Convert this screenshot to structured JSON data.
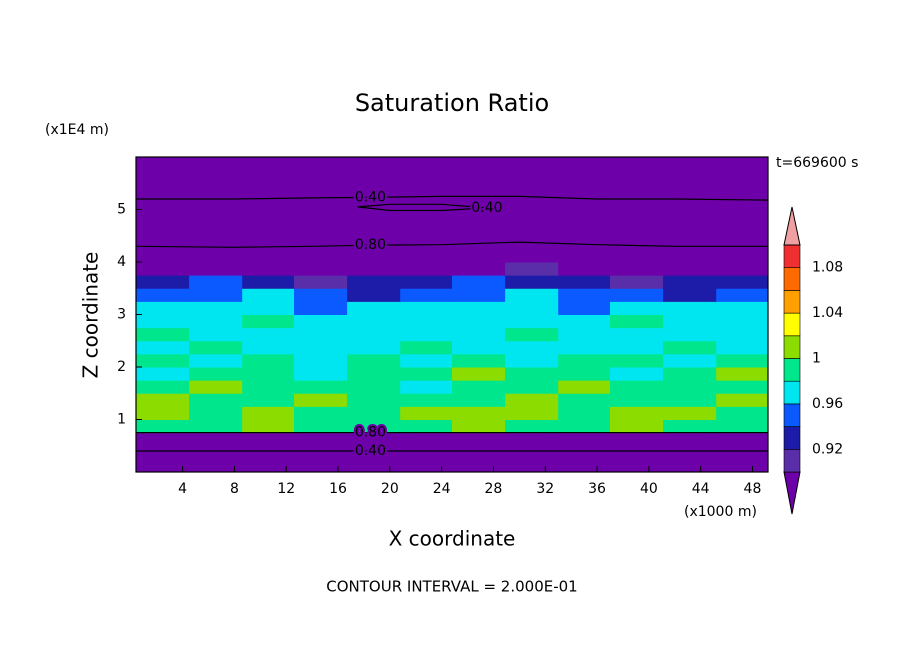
{
  "chart_data": {
    "type": "contourf",
    "title": "Saturation Ratio",
    "x_label": "X coordinate",
    "y_label": "Z coordinate",
    "x_unit": "(x1000 m)",
    "y_unit": "(x1E4 m)",
    "time_label": "t=669600 s",
    "footer": "CONTOUR INTERVAL = 2.000E-01",
    "xlim": [
      0.4,
      49.2
    ],
    "ylim": [
      0,
      6
    ],
    "xticks": [
      4,
      8,
      12,
      16,
      20,
      24,
      28,
      32,
      36,
      40,
      44,
      48
    ],
    "yticks": [
      1,
      2,
      3,
      4,
      5
    ],
    "levels": [
      0.9,
      0.92,
      0.94,
      0.96,
      0.98,
      1,
      1.02,
      1.04,
      1.06,
      1.08,
      1.1
    ],
    "level_ticks": [
      0.92,
      0.96,
      1,
      1.04,
      1.08
    ],
    "colors": [
      "#6e00aa",
      "#5a2ea8",
      "#1c1ca8",
      "#0a5aff",
      "#00e6f0",
      "#00e68c",
      "#8cdc00",
      "#ffff00",
      "#ffa000",
      "#ff6a00",
      "#f03030",
      "#f0a0a0"
    ],
    "field": {
      "x": [
        0.4,
        4.5,
        8.6,
        12.6,
        16.7,
        20.8,
        24.8,
        28.9,
        33,
        37,
        41.1,
        45.2,
        49.2
      ],
      "z": [
        0,
        0.25,
        0.5,
        0.75,
        1,
        1.25,
        1.5,
        1.75,
        2,
        2.25,
        2.5,
        2.75,
        3,
        3.25,
        3.5,
        3.75,
        4,
        4.25,
        4.5,
        4.75,
        5,
        5.25,
        5.5,
        5.75,
        6
      ],
      "values": [
        [
          0.3,
          0.3,
          0.3,
          0.3,
          0.3,
          0.3,
          0.3,
          0.3,
          0.3,
          0.3,
          0.3,
          0.3
        ],
        [
          0.45,
          0.45,
          0.45,
          0.45,
          0.45,
          0.45,
          0.45,
          0.45,
          0.45,
          0.45,
          0.45,
          0.45
        ],
        [
          0.7,
          0.7,
          0.7,
          0.7,
          0.7,
          0.7,
          0.7,
          0.7,
          0.7,
          0.7,
          0.7,
          0.7
        ],
        [
          0.99,
          0.99,
          1.01,
          0.99,
          0.99,
          0.99,
          1.01,
          0.99,
          0.99,
          1.01,
          0.99,
          0.99
        ],
        [
          1.01,
          0.99,
          1.01,
          0.99,
          0.99,
          1.01,
          1.01,
          1.01,
          0.99,
          1.01,
          1.01,
          0.99
        ],
        [
          1.01,
          0.99,
          0.99,
          1.01,
          0.99,
          0.99,
          0.99,
          1.01,
          0.99,
          0.99,
          0.99,
          1.01
        ],
        [
          0.99,
          1.01,
          0.99,
          0.99,
          0.99,
          0.97,
          0.99,
          0.99,
          1.01,
          0.99,
          0.99,
          0.99
        ],
        [
          0.97,
          0.99,
          0.99,
          0.97,
          0.99,
          0.99,
          1.01,
          0.99,
          0.99,
          0.97,
          0.99,
          1.01
        ],
        [
          0.99,
          0.97,
          0.99,
          0.97,
          0.99,
          0.97,
          0.99,
          0.97,
          0.99,
          0.99,
          0.97,
          0.99
        ],
        [
          0.97,
          0.99,
          0.97,
          0.97,
          0.97,
          0.99,
          0.97,
          0.97,
          0.97,
          0.97,
          0.99,
          0.97
        ],
        [
          0.99,
          0.97,
          0.97,
          0.97,
          0.97,
          0.97,
          0.97,
          0.99,
          0.97,
          0.97,
          0.97,
          0.97
        ],
        [
          0.97,
          0.97,
          0.99,
          0.97,
          0.97,
          0.97,
          0.97,
          0.97,
          0.97,
          0.99,
          0.97,
          0.97
        ],
        [
          0.97,
          0.97,
          0.97,
          0.95,
          0.97,
          0.97,
          0.97,
          0.97,
          0.95,
          0.97,
          0.97,
          0.97
        ],
        [
          0.95,
          0.95,
          0.97,
          0.95,
          0.93,
          0.95,
          0.95,
          0.97,
          0.95,
          0.95,
          0.93,
          0.95
        ],
        [
          0.93,
          0.95,
          0.93,
          0.91,
          0.93,
          0.93,
          0.95,
          0.93,
          0.93,
          0.91,
          0.93,
          0.93
        ],
        [
          0.87,
          0.87,
          0.87,
          0.87,
          0.87,
          0.87,
          0.87,
          0.91,
          0.87,
          0.87,
          0.87,
          0.87
        ],
        [
          0.82,
          0.82,
          0.82,
          0.82,
          0.82,
          0.82,
          0.82,
          0.82,
          0.82,
          0.82,
          0.82,
          0.82
        ],
        [
          0.75,
          0.75,
          0.75,
          0.75,
          0.75,
          0.75,
          0.75,
          0.75,
          0.75,
          0.75,
          0.75,
          0.75
        ],
        [
          0.62,
          0.62,
          0.62,
          0.62,
          0.62,
          0.62,
          0.62,
          0.62,
          0.62,
          0.62,
          0.62,
          0.62
        ],
        [
          0.5,
          0.5,
          0.5,
          0.5,
          0.5,
          0.5,
          0.5,
          0.5,
          0.5,
          0.5,
          0.5,
          0.5
        ],
        [
          0.42,
          0.42,
          0.42,
          0.42,
          0.42,
          0.42,
          0.42,
          0.42,
          0.42,
          0.42,
          0.42,
          0.42
        ],
        [
          0.35,
          0.35,
          0.35,
          0.35,
          0.35,
          0.35,
          0.35,
          0.35,
          0.35,
          0.35,
          0.35,
          0.35
        ],
        [
          0.3,
          0.3,
          0.3,
          0.3,
          0.3,
          0.3,
          0.3,
          0.3,
          0.3,
          0.3,
          0.3,
          0.3
        ],
        [
          0.28,
          0.28,
          0.28,
          0.28,
          0.28,
          0.28,
          0.28,
          0.28,
          0.28,
          0.28,
          0.28,
          0.28
        ]
      ]
    },
    "contours": [
      {
        "level": {
          "value": 0.4,
          "label": "0.40"
        },
        "x": [
          0.4,
          8,
          14,
          18.5,
          24,
          30,
          36,
          42,
          49.2
        ],
        "z": [
          5.2,
          5.2,
          5.22,
          5.23,
          5.25,
          5.25,
          5.2,
          5.2,
          5.18
        ]
      },
      {
        "level": {
          "value": 0.4,
          "label": "0.40"
        },
        "x": [
          17.5,
          20,
          24,
          27.5,
          24,
          20,
          17.5
        ],
        "z": [
          5.05,
          5.1,
          5.1,
          5.03,
          4.98,
          4.98,
          5.05
        ]
      },
      {
        "level": {
          "value": 0.8,
          "label": "0.80"
        },
        "x": [
          0.4,
          8,
          14,
          18.5,
          24,
          30,
          36,
          42,
          49.2
        ],
        "z": [
          4.3,
          4.28,
          4.3,
          4.32,
          4.33,
          4.38,
          4.33,
          4.3,
          4.3
        ]
      },
      {
        "level": {
          "value": 0.8,
          "label": "0.80"
        },
        "x": [
          0.4,
          8,
          14,
          18.5,
          24,
          30,
          36,
          42,
          49.2
        ],
        "z": [
          0.75,
          0.75,
          0.75,
          0.75,
          0.75,
          0.75,
          0.75,
          0.75,
          0.75
        ]
      },
      {
        "level": {
          "value": 0.4,
          "label": "0.40"
        },
        "x": [
          0.4,
          8,
          14,
          18.5,
          24,
          30,
          36,
          42,
          49.2
        ],
        "z": [
          0.4,
          0.4,
          0.4,
          0.4,
          0.4,
          0.4,
          0.4,
          0.4,
          0.4
        ]
      }
    ]
  }
}
